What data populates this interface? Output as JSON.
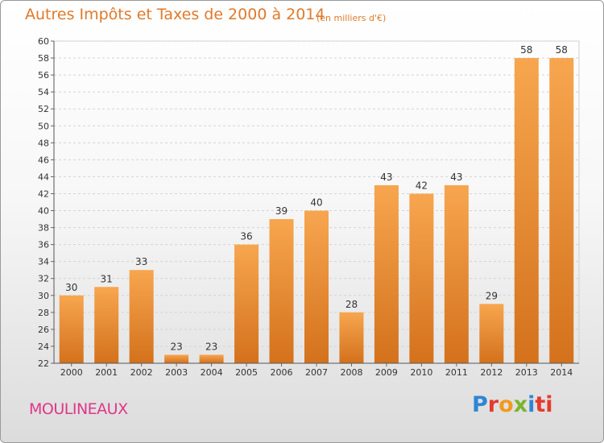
{
  "header": {
    "title": "Autres Impôts et Taxes de 2000 à 2014",
    "subtitle": "(en milliers d'€)"
  },
  "footer": {
    "city": "MOULINEAUX",
    "logo_letters": [
      "P",
      "r",
      "o",
      "x",
      "i",
      "ti"
    ]
  },
  "colors": {
    "bar_light": "#f7a64f",
    "bar_dark": "#d4711c",
    "title": "#e07a2a",
    "city": "#e0368a"
  },
  "chart_data": {
    "type": "bar",
    "title": "Autres Impôts et Taxes de 2000 à 2014",
    "subtitle": "(en milliers d'€)",
    "categories": [
      "2000",
      "2001",
      "2002",
      "2003",
      "2004",
      "2005",
      "2006",
      "2007",
      "2008",
      "2009",
      "2010",
      "2011",
      "2012",
      "2013",
      "2014"
    ],
    "values": [
      30,
      31,
      33,
      23,
      23,
      36,
      39,
      40,
      28,
      43,
      42,
      43,
      29,
      58,
      58
    ],
    "ylim": [
      22,
      60
    ],
    "yticks": [
      22,
      24,
      26,
      28,
      30,
      32,
      34,
      36,
      38,
      40,
      42,
      44,
      46,
      48,
      50,
      52,
      54,
      56,
      58,
      60
    ],
    "grid": true,
    "legend": "none"
  }
}
